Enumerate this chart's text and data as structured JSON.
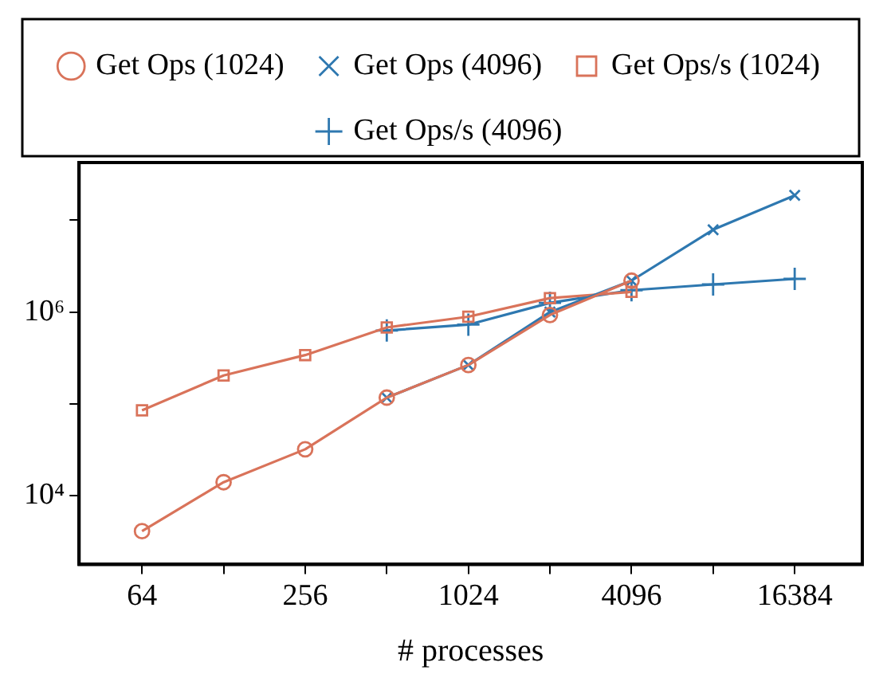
{
  "chart_data": {
    "type": "line",
    "xlabel": "# processes",
    "log": "xy",
    "legend": "top",
    "grid": false,
    "xlim": [
      37.5,
      29100
    ],
    "xticks": [
      64,
      {
        "value": 128,
        "label": null
      },
      256,
      {
        "value": 512,
        "label": null
      },
      1024,
      {
        "value": 2048,
        "label": null
      },
      4096,
      {
        "value": 8192,
        "label": null
      },
      16384
    ],
    "ylim": [
      1780,
      42600000
    ],
    "yticks": [
      {
        "value": 10000,
        "label": "10⁴"
      },
      {
        "value": 100000,
        "label": null
      },
      {
        "value": 1000000,
        "label": "10⁶"
      },
      {
        "value": 10000000,
        "label": null
      }
    ],
    "series": [
      {
        "name": "Get Ops (1024)",
        "color": "#d9735a",
        "marker": "circle",
        "x": [
          64,
          128,
          256,
          512,
          1024,
          2048,
          4096
        ],
        "values": [
          4100,
          14000,
          32000,
          117000,
          265000,
          930000,
          2200000
        ]
      },
      {
        "name": "Get Ops (4096)",
        "color": "#2e78b0",
        "marker": "cross",
        "x": [
          512,
          1024,
          2048,
          4096,
          8192,
          16384
        ],
        "values": [
          117000,
          265000,
          1000000,
          2200000,
          7900000,
          18700000
        ]
      },
      {
        "name": "Get Ops/s (1024)",
        "color": "#d9735a",
        "marker": "square",
        "x": [
          64,
          128,
          256,
          512,
          1024,
          2048,
          4096
        ],
        "values": [
          85000,
          204000,
          340000,
          680000,
          890000,
          1420000,
          1660000
        ]
      },
      {
        "name": "Get Ops/s (4096)",
        "color": "#2e78b0",
        "marker": "plus",
        "x": [
          512,
          1024,
          2048,
          4096,
          8192,
          16384
        ],
        "values": [
          630000,
          730000,
          1260000,
          1730000,
          2000000,
          2300000
        ]
      }
    ]
  }
}
